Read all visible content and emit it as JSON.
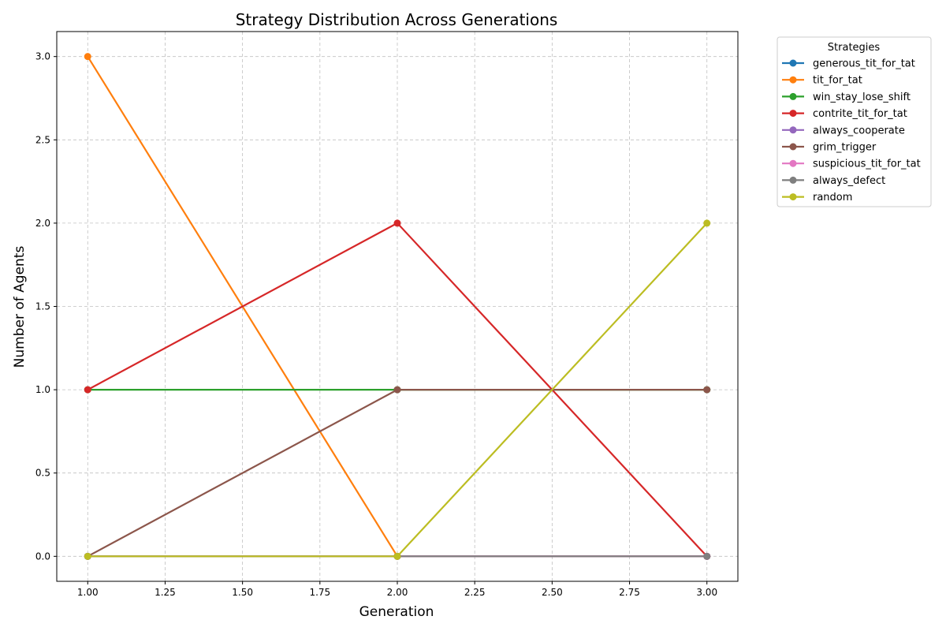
{
  "chart_data": {
    "type": "line",
    "title": "Strategy Distribution Across Generations",
    "xlabel": "Generation",
    "ylabel": "Number of Agents",
    "x": [
      1,
      2,
      3
    ],
    "xlim": [
      0.9,
      3.1
    ],
    "ylim": [
      -0.15,
      3.15
    ],
    "xticks": [
      1.0,
      1.25,
      1.5,
      1.75,
      2.0,
      2.25,
      2.5,
      2.75,
      3.0
    ],
    "xtick_labels": [
      "1.00",
      "1.25",
      "1.50",
      "1.75",
      "2.00",
      "2.25",
      "2.50",
      "2.75",
      "3.00"
    ],
    "yticks": [
      0.0,
      0.5,
      1.0,
      1.5,
      2.0,
      2.5,
      3.0
    ],
    "ytick_labels": [
      "0.0",
      "0.5",
      "1.0",
      "1.5",
      "2.0",
      "2.5",
      "3.0"
    ],
    "grid": true,
    "legend": {
      "title": "Strategies",
      "placement": "outside-top-right"
    },
    "series": [
      {
        "name": "generous_tit_for_tat",
        "color": "#1f77b4",
        "values": [
          0,
          0,
          0
        ]
      },
      {
        "name": "tit_for_tat",
        "color": "#ff7f0e",
        "values": [
          3,
          0,
          0
        ]
      },
      {
        "name": "win_stay_lose_shift",
        "color": "#2ca02c",
        "values": [
          1,
          1,
          1
        ]
      },
      {
        "name": "contrite_tit_for_tat",
        "color": "#d62728",
        "values": [
          1,
          2,
          0
        ]
      },
      {
        "name": "always_cooperate",
        "color": "#9467bd",
        "values": [
          0,
          0,
          0
        ]
      },
      {
        "name": "grim_trigger",
        "color": "#8c564b",
        "values": [
          0,
          1,
          1
        ]
      },
      {
        "name": "suspicious_tit_for_tat",
        "color": "#e377c2",
        "values": [
          0,
          0,
          0
        ]
      },
      {
        "name": "always_defect",
        "color": "#7f7f7f",
        "values": [
          0,
          0,
          0
        ]
      },
      {
        "name": "random",
        "color": "#bcbd22",
        "values": [
          0,
          0,
          2
        ]
      }
    ]
  }
}
